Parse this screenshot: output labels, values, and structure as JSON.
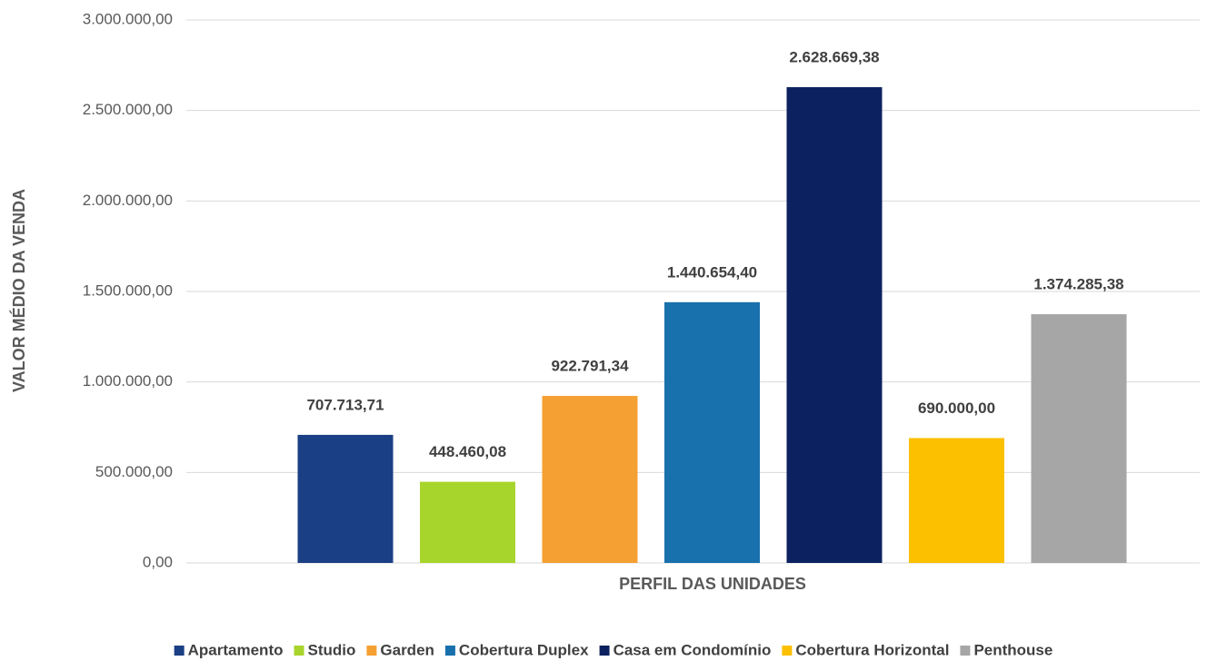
{
  "chart_data": {
    "type": "bar",
    "x_label": "PERFIL DAS UNIDADES",
    "y_label": "VALOR MÉDIO DA VENDA",
    "categories": [
      null
    ],
    "series": [
      {
        "name": "Apartamento",
        "color": "#1b3f84",
        "values": [
          707713.71
        ],
        "value_labels": [
          "707.713,71"
        ]
      },
      {
        "name": "Studio",
        "color": "#a8d52b",
        "values": [
          448460.08
        ],
        "value_labels": [
          "448.460,08"
        ]
      },
      {
        "name": "Garden",
        "color": "#f5a032",
        "values": [
          922791.34
        ],
        "value_labels": [
          "922.791,34"
        ]
      },
      {
        "name": "Cobertura Duplex",
        "color": "#1870ac",
        "values": [
          1440654.4
        ],
        "value_labels": [
          "1.440.654,40"
        ]
      },
      {
        "name": "Casa em Condomínio",
        "color": "#0c2160",
        "values": [
          2628669.38
        ],
        "value_labels": [
          "2.628.669,38"
        ]
      },
      {
        "name": "Cobertura Horizontal",
        "color": "#fcc000",
        "values": [
          690000.0
        ],
        "value_labels": [
          "690.000,00"
        ]
      },
      {
        "name": "Penthouse",
        "color": "#a6a6a6",
        "values": [
          1374285.38
        ],
        "value_labels": [
          "1.374.285,38"
        ]
      }
    ],
    "ylim": [
      0,
      3000000
    ],
    "yticks": [
      {
        "value": 0,
        "label": "0,00"
      },
      {
        "value": 500000,
        "label": "500.000,00"
      },
      {
        "value": 1000000,
        "label": "1.000.000,00"
      },
      {
        "value": 1500000,
        "label": "1.500.000,00"
      },
      {
        "value": 2000000,
        "label": "2.000.000,00"
      },
      {
        "value": 2500000,
        "label": "2.500.000,00"
      },
      {
        "value": 3000000,
        "label": "3.000.000,00"
      }
    ],
    "grid": true,
    "legend": "bottom"
  }
}
